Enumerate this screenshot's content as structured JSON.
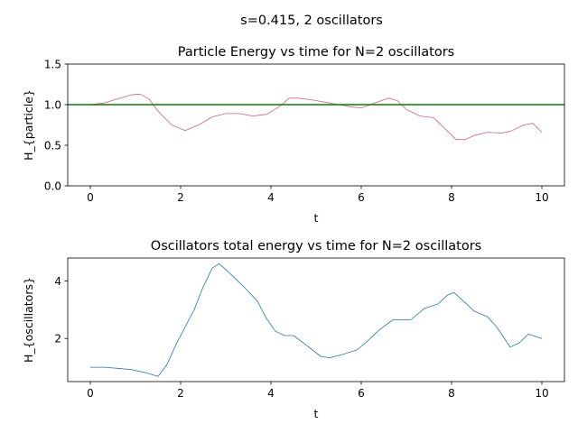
{
  "figure": {
    "suptitle": "s=0.415, 2 oscillators"
  },
  "chart_data": [
    {
      "type": "line",
      "title": "Particle Energy vs time for N=2 oscillators",
      "xlabel": "t",
      "ylabel": "H_{particle}",
      "xlim": [
        -0.5,
        10.5
      ],
      "ylim": [
        0.0,
        1.5
      ],
      "xticks": [
        0,
        2,
        4,
        6,
        8,
        10
      ],
      "yticks": [
        0.0,
        0.5,
        1.0,
        1.5
      ],
      "xtick_labels": [
        "0",
        "2",
        "4",
        "6",
        "8",
        "10"
      ],
      "ytick_labels": [
        "0.0",
        "0.5",
        "1.0",
        "1.5"
      ],
      "grid": false,
      "hline": {
        "y": 1.0,
        "color": "#008000"
      },
      "series": [
        {
          "color": "#d65f7e",
          "x": [
            0,
            0.3,
            0.6,
            0.9,
            1.1,
            1.3,
            1.5,
            1.8,
            2.1,
            2.4,
            2.7,
            3.0,
            3.3,
            3.6,
            3.9,
            4.2,
            4.4,
            4.6,
            4.9,
            5.2,
            5.5,
            5.8,
            6.0,
            6.3,
            6.6,
            6.8,
            7.0,
            7.3,
            7.6,
            7.9,
            8.1,
            8.3,
            8.5,
            8.8,
            9.1,
            9.3,
            9.6,
            9.8,
            10.0
          ],
          "y": [
            1.0,
            1.02,
            1.07,
            1.12,
            1.13,
            1.07,
            0.92,
            0.75,
            0.68,
            0.75,
            0.85,
            0.89,
            0.89,
            0.86,
            0.88,
            0.98,
            1.08,
            1.08,
            1.06,
            1.03,
            1.0,
            0.97,
            0.96,
            1.02,
            1.08,
            1.05,
            0.94,
            0.86,
            0.84,
            0.68,
            0.57,
            0.57,
            0.62,
            0.66,
            0.65,
            0.67,
            0.75,
            0.77,
            0.66
          ]
        }
      ]
    },
    {
      "type": "line",
      "title": "Oscillators total energy vs time for N=2 oscillators",
      "xlabel": "t",
      "ylabel": "H_{oscillators}",
      "xlim": [
        -0.5,
        10.5
      ],
      "ylim": [
        0.5,
        4.8
      ],
      "xticks": [
        0,
        2,
        4,
        6,
        8,
        10
      ],
      "yticks": [
        2,
        4
      ],
      "xtick_labels": [
        "0",
        "2",
        "4",
        "6",
        "8",
        "10"
      ],
      "ytick_labels": [
        "2",
        "4"
      ],
      "grid": false,
      "series": [
        {
          "color": "#1f77b4",
          "x": [
            0,
            0.3,
            0.6,
            0.9,
            1.2,
            1.5,
            1.7,
            1.9,
            2.1,
            2.3,
            2.5,
            2.7,
            2.85,
            3.0,
            3.2,
            3.4,
            3.7,
            3.9,
            4.1,
            4.3,
            4.5,
            4.8,
            5.1,
            5.3,
            5.6,
            5.9,
            6.1,
            6.4,
            6.7,
            6.9,
            7.1,
            7.4,
            7.7,
            7.9,
            8.05,
            8.3,
            8.5,
            8.8,
            9.0,
            9.3,
            9.5,
            9.7,
            10.0
          ],
          "y": [
            1.0,
            1.0,
            0.96,
            0.92,
            0.82,
            0.68,
            1.1,
            1.8,
            2.4,
            3.0,
            3.8,
            4.45,
            4.6,
            4.4,
            4.1,
            3.8,
            3.3,
            2.7,
            2.25,
            2.1,
            2.1,
            1.75,
            1.38,
            1.33,
            1.45,
            1.6,
            1.85,
            2.3,
            2.65,
            2.65,
            2.65,
            3.05,
            3.2,
            3.5,
            3.6,
            3.25,
            2.95,
            2.75,
            2.4,
            1.7,
            1.85,
            2.15,
            2.0
          ]
        }
      ]
    }
  ]
}
